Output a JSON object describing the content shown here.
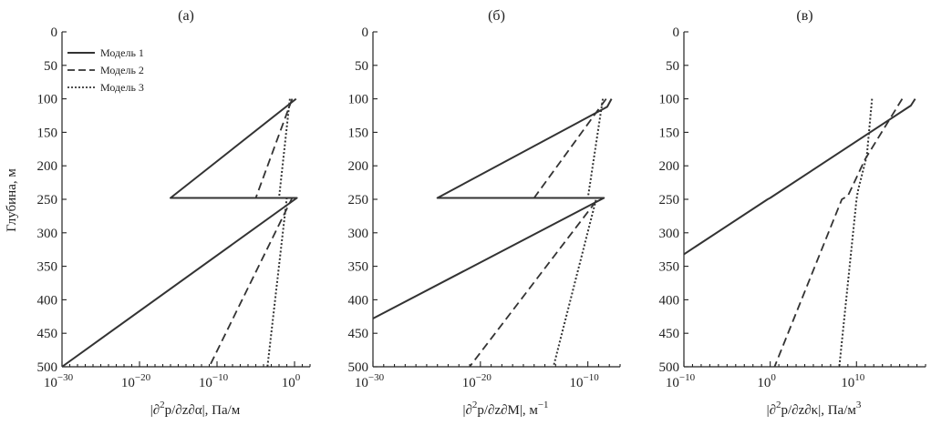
{
  "y_axis_title": "Глубина, м",
  "legend": [
    {
      "label": "Модель 1",
      "style": "solid"
    },
    {
      "label": "Модель 2",
      "style": "dashed"
    },
    {
      "label": "Модель 3",
      "style": "dotted"
    }
  ],
  "colors": {
    "line": "#333333",
    "axis": "#222222"
  },
  "chart_data": [
    {
      "type": "line",
      "panel_label": "(а)",
      "xlabel_parts": [
        "|∂",
        "2",
        "p/∂z∂α|, Па/м"
      ],
      "x_scale": "log",
      "xlim_exp": [
        -30,
        2
      ],
      "x_ticks": [
        {
          "base": "10",
          "exp": "−30",
          "e": -30
        },
        {
          "base": "10",
          "exp": "−20",
          "e": -20
        },
        {
          "base": "10",
          "exp": "−10",
          "e": -10
        },
        {
          "base": "10",
          "exp": "0",
          "e": 0
        }
      ],
      "ylim": [
        0,
        500
      ],
      "y_inverted": true,
      "y_ticks": [
        0,
        50,
        100,
        150,
        200,
        250,
        300,
        350,
        400,
        450,
        500
      ],
      "series": [
        {
          "name": "Модель 1",
          "style": "solid",
          "points": [
            [
              0.2,
              100
            ],
            [
              -16,
              248
            ],
            [
              0.3,
              248
            ],
            [
              -30,
              500
            ]
          ]
        },
        {
          "name": "Модель 2",
          "style": "dashed",
          "points": [
            [
              -0.3,
              100
            ],
            [
              -5,
              248
            ],
            [
              -0.3,
              248
            ],
            [
              -11,
              500
            ]
          ]
        },
        {
          "name": "Модель 3",
          "style": "dotted",
          "points": [
            [
              -0.6,
              100
            ],
            [
              -2,
              248
            ],
            [
              -1,
              248
            ],
            [
              -3.5,
              500
            ]
          ]
        }
      ]
    },
    {
      "type": "line",
      "panel_label": "(б)",
      "xlabel_parts": [
        "|∂",
        "2",
        "p/∂z∂M|, м",
        "−1"
      ],
      "x_scale": "log",
      "xlim_exp": [
        -30,
        -7
      ],
      "x_ticks": [
        {
          "base": "10",
          "exp": "−30",
          "e": -30
        },
        {
          "base": "10",
          "exp": "−20",
          "e": -20
        },
        {
          "base": "10",
          "exp": "−10",
          "e": -10
        }
      ],
      "ylim": [
        0,
        500
      ],
      "y_inverted": true,
      "y_ticks": [
        0,
        50,
        100,
        150,
        200,
        250,
        300,
        350,
        400,
        450,
        500
      ],
      "series": [
        {
          "name": "Модель 1",
          "style": "solid",
          "points": [
            [
              -7.8,
              100
            ],
            [
              -8.2,
              112
            ],
            [
              -24,
              248
            ],
            [
              -8.5,
              248
            ],
            [
              -30,
              428
            ]
          ]
        },
        {
          "name": "Модель 2",
          "style": "dashed",
          "points": [
            [
              -8.3,
              100
            ],
            [
              -15,
              248
            ],
            [
              -9,
              248
            ],
            [
              -21,
              500
            ]
          ]
        },
        {
          "name": "Модель 3",
          "style": "dotted",
          "points": [
            [
              -8.6,
              100
            ],
            [
              -10,
              248
            ],
            [
              -9.2,
              248
            ],
            [
              -13.2,
              500
            ]
          ]
        }
      ]
    },
    {
      "type": "line",
      "panel_label": "(в)",
      "xlabel_parts": [
        "|∂",
        "2",
        "p/∂z∂κ|, Па/м",
        "3"
      ],
      "x_scale": "log",
      "xlim_exp": [
        -10,
        18
      ],
      "x_ticks": [
        {
          "base": "10",
          "exp": "−10",
          "e": -10
        },
        {
          "base": "10",
          "exp": "0",
          "e": 0
        },
        {
          "base": "10",
          "exp": "10",
          "e": 10
        }
      ],
      "ylim": [
        0,
        500
      ],
      "y_inverted": true,
      "y_ticks": [
        0,
        50,
        100,
        150,
        200,
        250,
        300,
        350,
        400,
        450,
        500
      ],
      "series": [
        {
          "name": "Модель 1",
          "style": "solid",
          "points": [
            [
              16.8,
              100
            ],
            [
              16.3,
              110
            ],
            [
              0,
              248
            ],
            [
              -0.3,
              250
            ],
            [
              -10,
              332
            ]
          ]
        },
        {
          "name": "Модель 2",
          "style": "dashed",
          "points": [
            [
              15.3,
              100
            ],
            [
              11,
              190
            ],
            [
              9,
              245
            ],
            [
              8.3,
              250
            ],
            [
              0.5,
              500
            ]
          ]
        },
        {
          "name": "Модель 3",
          "style": "dotted",
          "points": [
            [
              11.8,
              100
            ],
            [
              11.2,
              185
            ],
            [
              10.2,
              235
            ],
            [
              10,
              250
            ],
            [
              8,
              500
            ]
          ]
        }
      ]
    }
  ]
}
